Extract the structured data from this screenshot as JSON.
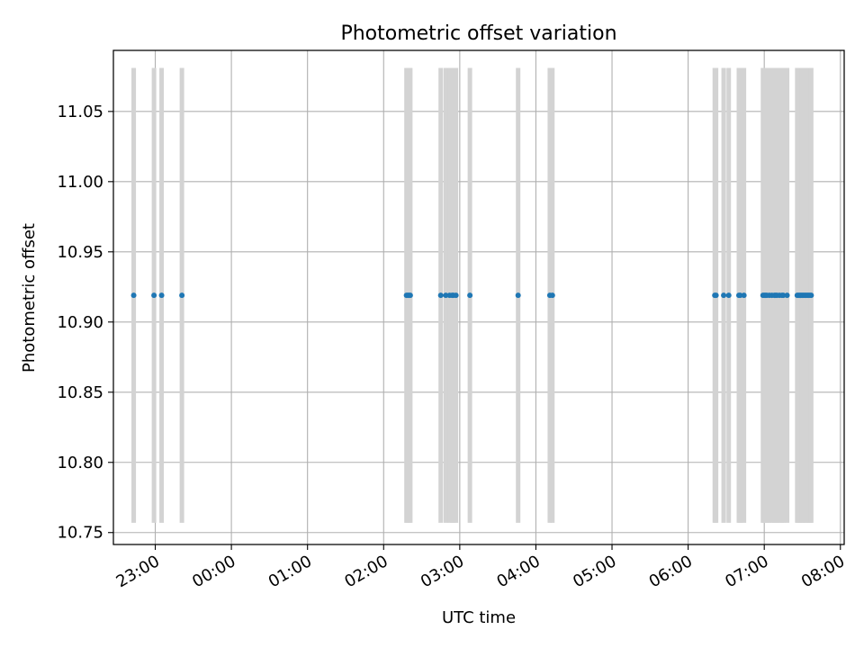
{
  "chart_data": {
    "type": "scatter",
    "title": "Photometric offset variation",
    "xlabel": "UTC time",
    "ylabel": "Photometric offset",
    "grid": true,
    "xlim": [
      "22:27",
      "08:03"
    ],
    "ylim": [
      10.7415,
      11.0935
    ],
    "x_ticks": [
      "23:00",
      "00:00",
      "01:00",
      "02:00",
      "03:00",
      "04:00",
      "05:00",
      "06:00",
      "07:00",
      "08:00"
    ],
    "y_ticks": [
      10.75,
      10.8,
      10.85,
      10.9,
      10.95,
      11.0,
      11.05
    ],
    "y_tick_labels": [
      "10.75",
      "10.80",
      "10.85",
      "10.90",
      "10.95",
      "11.00",
      "11.05"
    ],
    "error_bar_range": [
      10.757,
      11.081
    ],
    "error_bar_color": "#d3d3d3",
    "point_color": "#1f77b4",
    "series": [
      {
        "x": [
          "22:43",
          "22:59",
          "23:05",
          "23:21",
          "02:18",
          "02:19",
          "02:20",
          "02:21",
          "02:45",
          "02:49",
          "02:52",
          "02:54",
          "02:55",
          "02:57",
          "03:08",
          "03:46",
          "04:11",
          "04:13",
          "06:21",
          "06:22",
          "06:28",
          "06:32",
          "06:40",
          "06:41",
          "06:44",
          "06:59",
          "07:00",
          "07:01",
          "07:02",
          "07:04",
          "07:06",
          "07:08",
          "07:09",
          "07:10",
          "07:12",
          "07:14",
          "07:15",
          "07:18",
          "07:26",
          "07:27",
          "07:28",
          "07:29",
          "07:30",
          "07:31",
          "07:32",
          "07:33",
          "07:34",
          "07:35",
          "07:36",
          "07:37"
        ],
        "y": [
          10.919,
          10.919,
          10.919,
          10.919,
          10.919,
          10.919,
          10.919,
          10.919,
          10.919,
          10.919,
          10.919,
          10.919,
          10.919,
          10.919,
          10.919,
          10.919,
          10.919,
          10.919,
          10.919,
          10.919,
          10.919,
          10.919,
          10.919,
          10.919,
          10.919,
          10.919,
          10.919,
          10.919,
          10.919,
          10.919,
          10.919,
          10.919,
          10.919,
          10.919,
          10.919,
          10.919,
          10.919,
          10.919,
          10.919,
          10.919,
          10.919,
          10.919,
          10.919,
          10.919,
          10.919,
          10.919,
          10.919,
          10.919,
          10.919,
          10.919
        ]
      }
    ]
  }
}
